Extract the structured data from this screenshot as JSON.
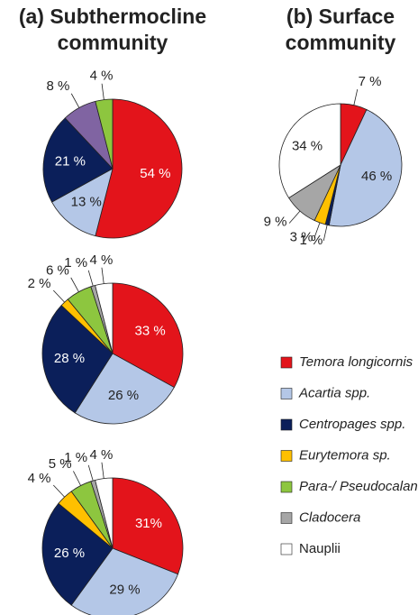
{
  "chart_data": [
    {
      "type": "pie",
      "title": [
        "(a) Subthermocline",
        "community"
      ],
      "values": [
        54,
        13,
        21,
        8,
        4
      ],
      "value_labels": [
        "54 %",
        "13 %",
        "21 %",
        "8 %",
        "4 %"
      ],
      "colors": [
        "#e3141b",
        "#b4c7e7",
        "#0b1f5a",
        "#8064a2",
        "#8dc63f"
      ]
    },
    {
      "type": "pie",
      "title": [
        "(b) Surface",
        "community"
      ],
      "values": [
        7,
        46,
        1,
        3,
        9,
        34
      ],
      "value_labels": [
        "7 %",
        "46 %",
        "1 %",
        "3 %",
        "9 %",
        "34 %"
      ],
      "colors": [
        "#e3141b",
        "#b4c7e7",
        "#0b1f5a",
        "#ffc000",
        "#a6a6a6",
        "#ffffff"
      ]
    },
    {
      "type": "pie",
      "values": [
        33,
        26,
        28,
        2,
        6,
        1,
        4
      ],
      "value_labels": [
        "33 %",
        "26 %",
        "28 %",
        "2 %",
        "6 %",
        "1 %",
        "4 %"
      ],
      "colors": [
        "#e3141b",
        "#b4c7e7",
        "#0b1f5a",
        "#ffc000",
        "#8dc63f",
        "#a6a6a6",
        "#ffffff"
      ]
    },
    {
      "type": "pie",
      "values": [
        31,
        29,
        26,
        4,
        5,
        1,
        4
      ],
      "value_labels": [
        "31%",
        "29 %",
        "26 %",
        "4 %",
        "5 %",
        "1 %",
        "4 %"
      ],
      "colors": [
        "#e3141b",
        "#b4c7e7",
        "#0b1f5a",
        "#ffc000",
        "#8dc63f",
        "#a6a6a6",
        "#ffffff"
      ]
    }
  ],
  "legend": {
    "labels": [
      "Temora longicornis",
      "Acartia spp.",
      "Centropages spp.",
      "Eurytemora sp.",
      "Para-/ Pseudocalanaus spp.",
      "Cladocera",
      "Nauplii"
    ],
    "colors": [
      "#e3141b",
      "#b4c7e7",
      "#0b1f5a",
      "#ffc000",
      "#8dc63f",
      "#a6a6a6",
      "#ffffff"
    ]
  }
}
